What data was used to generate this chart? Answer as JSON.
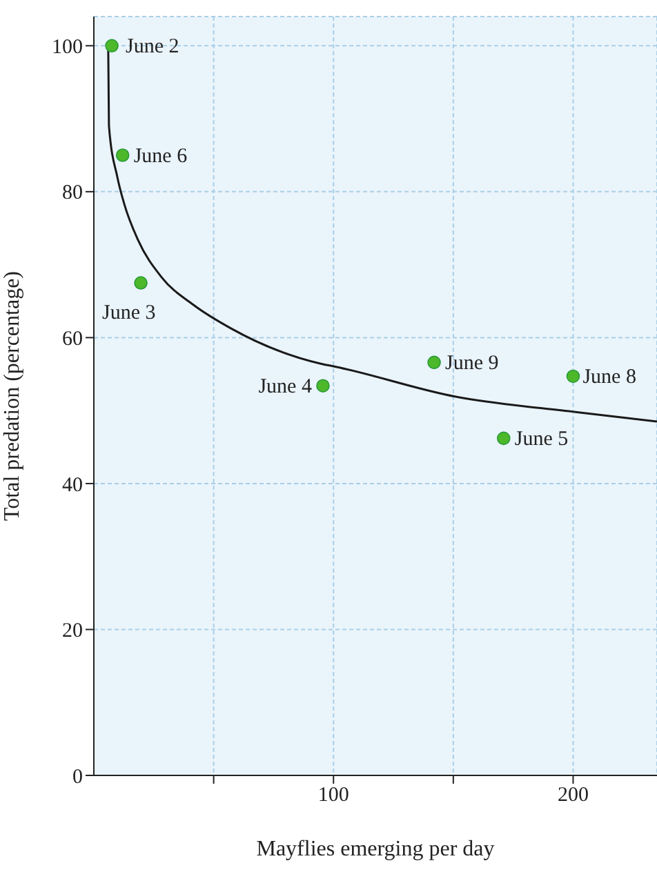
{
  "chart_data": {
    "type": "scatter",
    "xlabel": "Mayflies emerging per day",
    "ylabel": "Total predation (percentage)",
    "xlim": [
      0,
      235
    ],
    "xticks": [
      {
        "value": 50,
        "label": null
      },
      100,
      {
        "value": 150,
        "label": null
      },
      200
    ],
    "ylim": [
      0,
      104
    ],
    "yticks": [
      0,
      20,
      40,
      60,
      80,
      100
    ],
    "grid": true,
    "marker": "circle",
    "series": [
      {
        "color": "#4cb82a",
        "x": [
          7.5,
          12,
          19.6,
          95.6,
          142,
          171,
          200
        ],
        "values": [
          100,
          85,
          67.5,
          53.4,
          56.6,
          46.2,
          54.7
        ],
        "value_labels": [
          "June 2",
          "June 6",
          "June 3",
          "June 4",
          "June 9",
          "June 5",
          "June 8"
        ]
      },
      {
        "type": "line",
        "color": "#1a1a1a",
        "marker": "none",
        "line_style": "solid",
        "x": [
          6,
          6.3,
          9.8,
          12.7,
          18.4,
          28.2,
          41.5,
          57,
          95,
          101,
          151,
          201,
          235
        ],
        "values": [
          99.6,
          89,
          82,
          78.3,
          73.4,
          68.3,
          64.5,
          61.3,
          56.4,
          56,
          51.9,
          49.8,
          48.5
        ]
      }
    ]
  }
}
